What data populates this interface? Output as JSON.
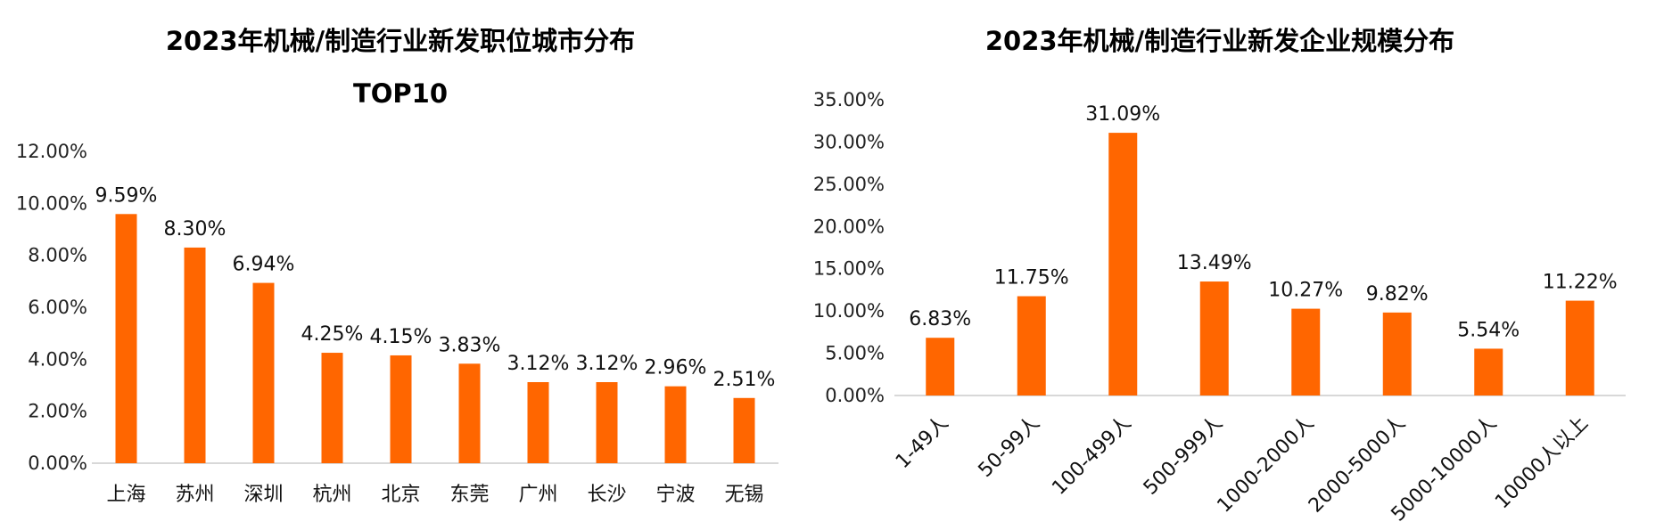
{
  "chart_data": [
    {
      "type": "bar",
      "title": "2023年机械/制造行业新发职位城市分布",
      "subtitle": "TOP10",
      "categories": [
        "上海",
        "苏州",
        "深圳",
        "杭州",
        "北京",
        "东莞",
        "广州",
        "长沙",
        "宁波",
        "无锡"
      ],
      "values": [
        9.59,
        8.3,
        6.94,
        4.25,
        4.15,
        3.83,
        3.12,
        3.12,
        2.96,
        2.51
      ],
      "value_labels": [
        "9.59%",
        "8.30%",
        "6.94%",
        "4.25%",
        "4.15%",
        "3.83%",
        "3.12%",
        "3.12%",
        "2.96%",
        "2.51%"
      ],
      "y_ticks": [
        "0.00%",
        "2.00%",
        "4.00%",
        "6.00%",
        "8.00%",
        "10.00%",
        "12.00%"
      ],
      "ylim": [
        0,
        12
      ],
      "grid": false,
      "color": "#FF6600"
    },
    {
      "type": "bar",
      "title": "2023年机械/制造行业新发企业规模分布",
      "categories": [
        "1-49人",
        "50-99人",
        "100-499人",
        "500-999人",
        "1000-2000人",
        "2000-5000人",
        "5000-10000人",
        "10000人以上"
      ],
      "values": [
        6.83,
        11.75,
        31.09,
        13.49,
        10.27,
        9.82,
        5.54,
        11.22
      ],
      "value_labels": [
        "6.83%",
        "11.75%",
        "31.09%",
        "13.49%",
        "10.27%",
        "9.82%",
        "5.54%",
        "11.22%"
      ],
      "y_ticks": [
        "0.00%",
        "5.00%",
        "10.00%",
        "15.00%",
        "20.00%",
        "25.00%",
        "30.00%",
        "35.00%"
      ],
      "ylim": [
        0,
        35
      ],
      "grid": false,
      "color": "#FF6600"
    }
  ]
}
